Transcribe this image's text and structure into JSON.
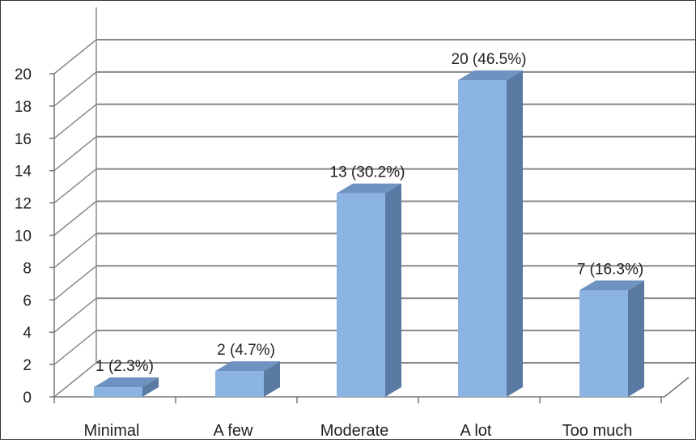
{
  "chart_data": {
    "type": "bar",
    "style": "3d-column",
    "categories": [
      "Minimal",
      "A few",
      "Moderate",
      "A lot",
      "Too much"
    ],
    "values": [
      1,
      2,
      13,
      20,
      7
    ],
    "data_labels": [
      "1 (2.3%)",
      "2 (4.7%)",
      "13 (30.2%)",
      "20 (46.5%)",
      "7 (16.3%)"
    ],
    "y_ticks": [
      "0",
      "2",
      "4",
      "6",
      "8",
      "10",
      "12",
      "14",
      "16",
      "18",
      "20"
    ],
    "ylim": [
      0,
      22
    ],
    "grid": true,
    "legend": "none",
    "title": "",
    "xlabel": "",
    "ylabel": "",
    "colors": {
      "bar_front": "#8cb4e2",
      "bar_side": "#5a7aa3",
      "bar_top": "#6f93c1",
      "grid": "#888888",
      "axis": "#777777",
      "text": "#222222",
      "frame": "#333333"
    }
  }
}
